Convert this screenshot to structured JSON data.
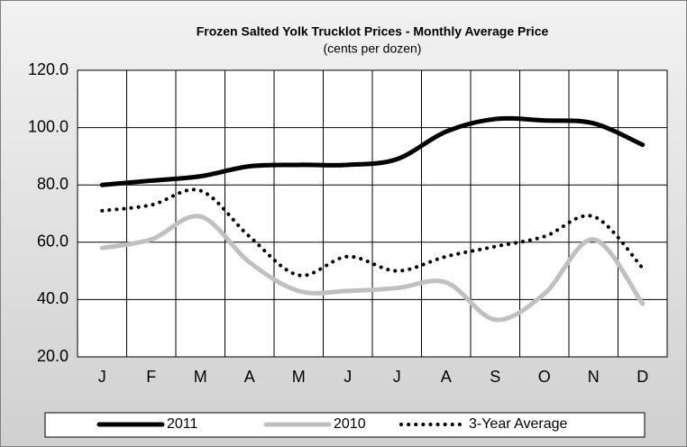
{
  "chart_data": {
    "type": "line",
    "title": "Frozen Salted Yolk Trucklot Prices - Monthly Average Price",
    "subtitle": "(cents per dozen)",
    "categories": [
      "J",
      "F",
      "M",
      "A",
      "M",
      "J",
      "J",
      "A",
      "S",
      "O",
      "N",
      "D"
    ],
    "series": [
      {
        "name": "2011",
        "color": "#000000",
        "line_style": "solid",
        "values": [
          80,
          81.5,
          83,
          86.5,
          87,
          87,
          89,
          98.6,
          103,
          102.5,
          101.5,
          94
        ]
      },
      {
        "name": "2010",
        "color": "#c0c0c0",
        "line_style": "solid",
        "values": [
          58,
          61,
          69,
          53,
          43,
          43,
          44,
          46,
          33,
          42,
          61,
          38.5
        ]
      },
      {
        "name": "3-Year Average",
        "color": "#000000",
        "line_style": "dotted",
        "values": [
          71,
          73,
          78,
          62,
          48.5,
          55,
          50,
          55,
          58.5,
          62,
          69,
          51
        ]
      }
    ],
    "ylim": [
      20,
      120
    ],
    "yticks": [
      {
        "value": 20,
        "label": "20.0"
      },
      {
        "value": 40,
        "label": "40.0"
      },
      {
        "value": 60,
        "label": "60.0"
      },
      {
        "value": 80,
        "label": "80.0"
      },
      {
        "value": 100,
        "label": "100.0"
      },
      {
        "value": 120,
        "label": "120.0"
      }
    ],
    "grid": true,
    "legend": "bottom"
  }
}
